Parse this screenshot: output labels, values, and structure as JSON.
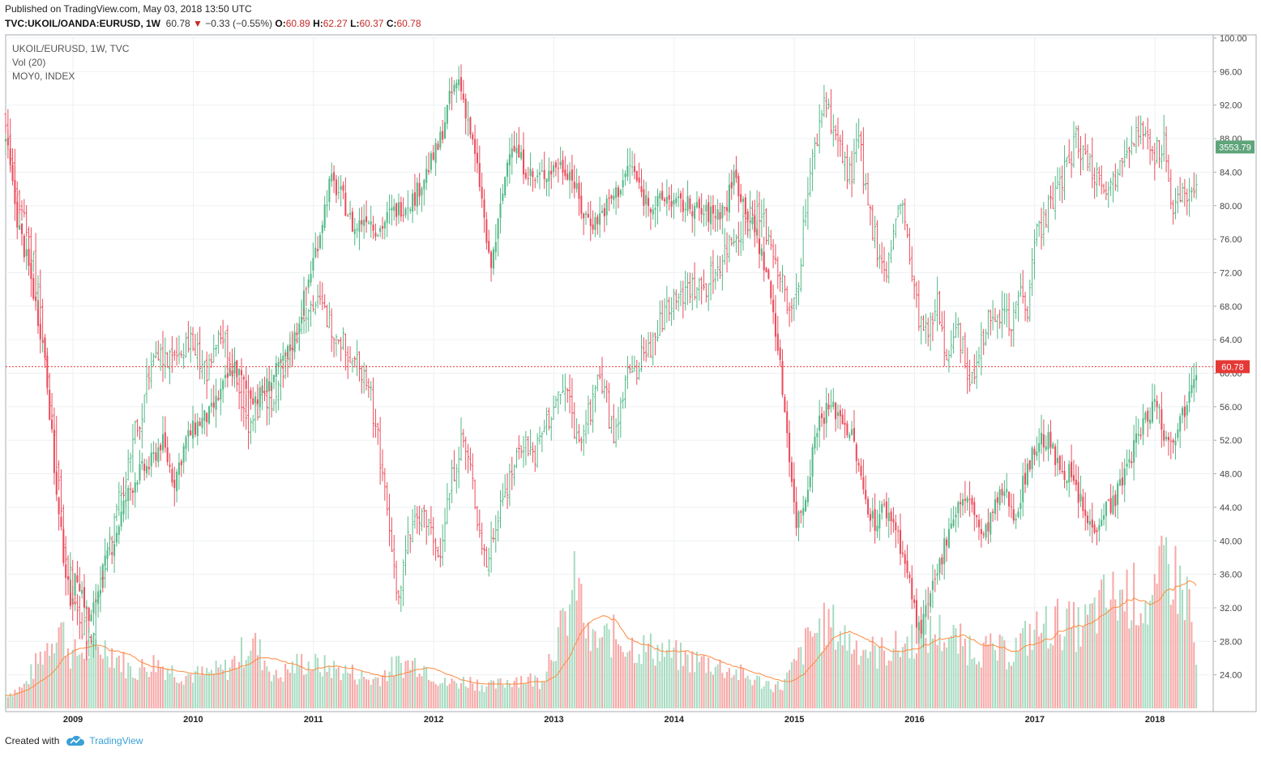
{
  "header": {
    "published": "Published on TradingView.com, May 03, 2018 13:50 UTC",
    "symbol": "TVC:UKOIL/OANDA:EURUSD, 1W",
    "last": "60.78",
    "change": "−0.33 (−0.55%)",
    "o_label": "O:",
    "o": "60.89",
    "h_label": "H:",
    "h": "62.27",
    "l_label": "L:",
    "l": "60.37",
    "c_label": "C:",
    "c": "60.78"
  },
  "legend": {
    "line1": "UKOIL/EURUSD, 1W, TVC",
    "line2": "Vol (20)",
    "line3": "MOY0, INDEX"
  },
  "footer": {
    "created": "Created with",
    "brand": "TradingView"
  },
  "colors": {
    "up": "#53b987",
    "down": "#eb4d5c",
    "vol_up": "#a9dcc3",
    "vol_down": "#f7a9a7",
    "ma": "#ff8a3d",
    "last_price": "#e53935",
    "index_badge": "#5fa47a"
  },
  "chart_data": {
    "type": "candlestick",
    "timeframe": "1W",
    "ylim": [
      20,
      100
    ],
    "y_ticks": [
      "24.00",
      "28.00",
      "32.00",
      "36.00",
      "40.00",
      "44.00",
      "48.00",
      "52.00",
      "56.00",
      "60.00",
      "64.00",
      "68.00",
      "72.00",
      "76.00",
      "80.00",
      "84.00",
      "88.00",
      "92.00",
      "96.00",
      "100.00"
    ],
    "x_ticks": [
      "2009",
      "2010",
      "2011",
      "2012",
      "2013",
      "2014",
      "2015",
      "2016",
      "2017",
      "2018"
    ],
    "x_start_year": 2008.45,
    "x_end_year": 2018.4,
    "price_label": "60.78",
    "index_label": "3553.79",
    "index_level": 87.0,
    "series": [
      {
        "name": "UKOIL/EURUSD",
        "points": [
          [
            2008.45,
            88
          ],
          [
            2008.55,
            78
          ],
          [
            2008.65,
            72
          ],
          [
            2008.78,
            62
          ],
          [
            2008.88,
            44
          ],
          [
            2008.98,
            33
          ],
          [
            2009.05,
            36
          ],
          [
            2009.15,
            30
          ],
          [
            2009.25,
            36
          ],
          [
            2009.35,
            40
          ],
          [
            2009.45,
            45
          ],
          [
            2009.55,
            48
          ],
          [
            2009.65,
            49
          ],
          [
            2009.75,
            52
          ],
          [
            2009.85,
            47
          ],
          [
            2009.95,
            52
          ],
          [
            2010.05,
            54
          ],
          [
            2010.15,
            55
          ],
          [
            2010.25,
            58
          ],
          [
            2010.35,
            61
          ],
          [
            2010.45,
            58
          ],
          [
            2010.55,
            57
          ],
          [
            2010.65,
            59
          ],
          [
            2010.75,
            61
          ],
          [
            2010.85,
            64
          ],
          [
            2010.95,
            70
          ],
          [
            2011.05,
            76
          ],
          [
            2011.15,
            83
          ],
          [
            2011.25,
            81
          ],
          [
            2011.35,
            77
          ],
          [
            2011.45,
            79
          ],
          [
            2011.55,
            77
          ],
          [
            2011.65,
            79
          ],
          [
            2011.75,
            80
          ],
          [
            2011.85,
            81
          ],
          [
            2011.95,
            84
          ],
          [
            2012.05,
            87
          ],
          [
            2012.15,
            93
          ],
          [
            2012.22,
            95
          ],
          [
            2012.3,
            90
          ],
          [
            2012.4,
            82
          ],
          [
            2012.48,
            72
          ],
          [
            2012.55,
            78
          ],
          [
            2012.65,
            88
          ],
          [
            2012.75,
            85
          ],
          [
            2012.85,
            83
          ],
          [
            2012.95,
            84
          ],
          [
            2013.05,
            85
          ],
          [
            2013.15,
            84
          ],
          [
            2013.25,
            79
          ],
          [
            2013.35,
            78
          ],
          [
            2013.45,
            80
          ],
          [
            2013.55,
            82
          ],
          [
            2013.65,
            85
          ],
          [
            2013.75,
            81
          ],
          [
            2013.85,
            80
          ],
          [
            2013.95,
            81
          ],
          [
            2014.05,
            80
          ],
          [
            2014.15,
            80
          ],
          [
            2014.25,
            79
          ],
          [
            2014.35,
            79
          ],
          [
            2014.45,
            80
          ],
          [
            2014.5,
            84
          ],
          [
            2014.6,
            80
          ],
          [
            2014.7,
            76
          ],
          [
            2014.78,
            72
          ],
          [
            2014.85,
            66
          ],
          [
            2014.92,
            57
          ],
          [
            2014.98,
            49
          ],
          [
            2015.02,
            42
          ],
          [
            2015.1,
            45
          ],
          [
            2015.2,
            54
          ],
          [
            2015.3,
            56
          ],
          [
            2015.4,
            55
          ],
          [
            2015.5,
            52
          ],
          [
            2015.58,
            46
          ],
          [
            2015.68,
            42
          ],
          [
            2015.75,
            44
          ],
          [
            2015.85,
            42
          ],
          [
            2015.92,
            38
          ],
          [
            2015.98,
            34
          ],
          [
            2016.05,
            29
          ],
          [
            2016.12,
            32
          ],
          [
            2016.2,
            36
          ],
          [
            2016.3,
            42
          ],
          [
            2016.4,
            45
          ],
          [
            2016.5,
            44
          ],
          [
            2016.58,
            40
          ],
          [
            2016.65,
            43
          ],
          [
            2016.75,
            46
          ],
          [
            2016.85,
            43
          ],
          [
            2016.95,
            49
          ],
          [
            2017.05,
            52
          ],
          [
            2017.12,
            52
          ],
          [
            2017.2,
            49
          ],
          [
            2017.3,
            48
          ],
          [
            2017.38,
            45
          ],
          [
            2017.45,
            42
          ],
          [
            2017.52,
            42
          ],
          [
            2017.6,
            44
          ],
          [
            2017.68,
            45
          ],
          [
            2017.78,
            49
          ],
          [
            2017.88,
            53
          ],
          [
            2017.95,
            55
          ],
          [
            2018.02,
            57
          ],
          [
            2018.1,
            52
          ],
          [
            2018.18,
            53
          ],
          [
            2018.26,
            56
          ],
          [
            2018.32,
            60
          ],
          [
            2018.36,
            60.78
          ]
        ]
      },
      {
        "name": "MOY0",
        "points": [
          [
            2008.45,
            91
          ],
          [
            2008.55,
            80
          ],
          [
            2008.65,
            76
          ],
          [
            2008.75,
            66
          ],
          [
            2008.85,
            52
          ],
          [
            2008.95,
            38
          ],
          [
            2009.05,
            31
          ],
          [
            2009.15,
            28
          ],
          [
            2009.25,
            36
          ],
          [
            2009.35,
            42
          ],
          [
            2009.45,
            48
          ],
          [
            2009.55,
            54
          ],
          [
            2009.65,
            60
          ],
          [
            2009.75,
            62
          ],
          [
            2009.85,
            61
          ],
          [
            2009.95,
            64
          ],
          [
            2010.05,
            62
          ],
          [
            2010.15,
            60
          ],
          [
            2010.25,
            65
          ],
          [
            2010.35,
            60
          ],
          [
            2010.45,
            54
          ],
          [
            2010.55,
            56
          ],
          [
            2010.65,
            57
          ],
          [
            2010.75,
            60
          ],
          [
            2010.85,
            64
          ],
          [
            2010.95,
            68
          ],
          [
            2011.05,
            68
          ],
          [
            2011.15,
            66
          ],
          [
            2011.25,
            64
          ],
          [
            2011.35,
            62
          ],
          [
            2011.45,
            60
          ],
          [
            2011.55,
            52
          ],
          [
            2011.65,
            40
          ],
          [
            2011.72,
            33
          ],
          [
            2011.8,
            40
          ],
          [
            2011.9,
            44
          ],
          [
            2012.0,
            40
          ],
          [
            2012.05,
            38
          ],
          [
            2012.12,
            44
          ],
          [
            2012.2,
            50
          ],
          [
            2012.25,
            52
          ],
          [
            2012.32,
            48
          ],
          [
            2012.38,
            42
          ],
          [
            2012.45,
            37
          ],
          [
            2012.55,
            44
          ],
          [
            2012.65,
            48
          ],
          [
            2012.75,
            52
          ],
          [
            2012.85,
            50
          ],
          [
            2012.95,
            54
          ],
          [
            2013.05,
            57
          ],
          [
            2013.12,
            58
          ],
          [
            2013.2,
            52
          ],
          [
            2013.3,
            55
          ],
          [
            2013.38,
            60
          ],
          [
            2013.45,
            57
          ],
          [
            2013.5,
            52
          ],
          [
            2013.58,
            58
          ],
          [
            2013.65,
            60
          ],
          [
            2013.75,
            62
          ],
          [
            2013.85,
            64
          ],
          [
            2013.95,
            68
          ],
          [
            2014.05,
            70
          ],
          [
            2014.15,
            70
          ],
          [
            2014.25,
            70
          ],
          [
            2014.35,
            72
          ],
          [
            2014.45,
            75
          ],
          [
            2014.55,
            77
          ],
          [
            2014.65,
            79
          ],
          [
            2014.75,
            78
          ],
          [
            2014.85,
            74
          ],
          [
            2014.95,
            68
          ],
          [
            2014.98,
            66
          ],
          [
            2015.05,
            72
          ],
          [
            2015.12,
            82
          ],
          [
            2015.2,
            88
          ],
          [
            2015.26,
            93
          ],
          [
            2015.32,
            90
          ],
          [
            2015.4,
            86
          ],
          [
            2015.48,
            83
          ],
          [
            2015.55,
            88
          ],
          [
            2015.62,
            80
          ],
          [
            2015.7,
            75
          ],
          [
            2015.78,
            72
          ],
          [
            2015.85,
            78
          ],
          [
            2015.92,
            80
          ],
          [
            2015.98,
            72
          ],
          [
            2016.05,
            66
          ],
          [
            2016.12,
            64
          ],
          [
            2016.2,
            68
          ],
          [
            2016.28,
            62
          ],
          [
            2016.35,
            67
          ],
          [
            2016.42,
            62
          ],
          [
            2016.48,
            58
          ],
          [
            2016.55,
            64
          ],
          [
            2016.62,
            66
          ],
          [
            2016.7,
            68
          ],
          [
            2016.8,
            66
          ],
          [
            2016.9,
            70
          ],
          [
            2016.95,
            68
          ],
          [
            2017.0,
            76
          ],
          [
            2017.08,
            78
          ],
          [
            2017.15,
            80
          ],
          [
            2017.22,
            83
          ],
          [
            2017.3,
            85
          ],
          [
            2017.35,
            88
          ],
          [
            2017.42,
            86
          ],
          [
            2017.5,
            84
          ],
          [
            2017.58,
            83
          ],
          [
            2017.65,
            82
          ],
          [
            2017.72,
            86
          ],
          [
            2017.8,
            88
          ],
          [
            2017.88,
            89
          ],
          [
            2017.95,
            87
          ],
          [
            2018.02,
            86
          ],
          [
            2018.08,
            88
          ],
          [
            2018.1,
            87
          ],
          [
            2018.15,
            79
          ],
          [
            2018.2,
            80
          ],
          [
            2018.25,
            81
          ],
          [
            2018.3,
            82
          ],
          [
            2018.36,
            84
          ]
        ]
      }
    ],
    "volume": {
      "name": "Vol (20)",
      "scale_note": "relative",
      "points": [
        [
          2008.45,
          0.09
        ],
        [
          2008.6,
          0.14
        ],
        [
          2008.8,
          0.42
        ],
        [
          2008.9,
          0.55
        ],
        [
          2009.0,
          0.34
        ],
        [
          2009.1,
          0.38
        ],
        [
          2009.3,
          0.4
        ],
        [
          2009.5,
          0.24
        ],
        [
          2009.7,
          0.3
        ],
        [
          2009.9,
          0.22
        ],
        [
          2010.1,
          0.22
        ],
        [
          2010.3,
          0.26
        ],
        [
          2010.5,
          0.44
        ],
        [
          2010.7,
          0.2
        ],
        [
          2010.9,
          0.3
        ],
        [
          2011.1,
          0.27
        ],
        [
          2011.3,
          0.24
        ],
        [
          2011.5,
          0.18
        ],
        [
          2011.7,
          0.28
        ],
        [
          2011.9,
          0.3
        ],
        [
          2012.1,
          0.16
        ],
        [
          2012.3,
          0.18
        ],
        [
          2012.5,
          0.14
        ],
        [
          2012.7,
          0.2
        ],
        [
          2012.9,
          0.18
        ],
        [
          2013.0,
          0.4
        ],
        [
          2013.1,
          0.55
        ],
        [
          2013.2,
          0.85
        ],
        [
          2013.3,
          0.42
        ],
        [
          2013.5,
          0.47
        ],
        [
          2013.7,
          0.4
        ],
        [
          2013.9,
          0.38
        ],
        [
          2014.1,
          0.32
        ],
        [
          2014.3,
          0.3
        ],
        [
          2014.5,
          0.24
        ],
        [
          2014.7,
          0.18
        ],
        [
          2014.9,
          0.14
        ],
        [
          2015.0,
          0.26
        ],
        [
          2015.15,
          0.48
        ],
        [
          2015.3,
          0.55
        ],
        [
          2015.5,
          0.42
        ],
        [
          2015.7,
          0.36
        ],
        [
          2015.9,
          0.4
        ],
        [
          2016.0,
          0.46
        ],
        [
          2016.2,
          0.5
        ],
        [
          2016.4,
          0.42
        ],
        [
          2016.6,
          0.38
        ],
        [
          2016.8,
          0.36
        ],
        [
          2017.0,
          0.5
        ],
        [
          2017.2,
          0.56
        ],
        [
          2017.4,
          0.52
        ],
        [
          2017.6,
          0.7
        ],
        [
          2017.8,
          0.75
        ],
        [
          2018.0,
          0.65
        ],
        [
          2018.1,
          1.0
        ],
        [
          2018.2,
          0.82
        ],
        [
          2018.3,
          0.7
        ],
        [
          2018.36,
          0.2
        ]
      ]
    }
  }
}
